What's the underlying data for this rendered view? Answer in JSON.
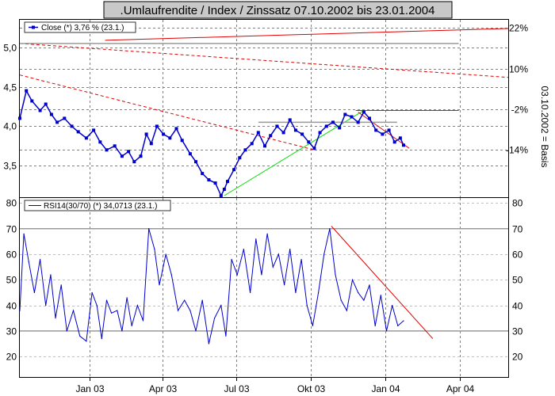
{
  "chart_data": [
    {
      "type": "line",
      "title": ".Umlaufrendite / Index / Zinssatz 07.10.2002 bis 23.01.2004",
      "legend": "Close (*) 3,76 % (23.1.)",
      "legend_placement": "top-left",
      "grid": true,
      "xticks": [
        "Jan 03",
        "Apr 03",
        "Jul 03",
        "Okt 03",
        "Jan 04",
        "Apr 04"
      ],
      "xlim": [
        "2002-10-07",
        "2004-05-31"
      ],
      "ylim": [
        3.1,
        5.35
      ],
      "yticks": [
        "3,5",
        "4,0",
        "4,5",
        "5,0"
      ],
      "y2ticks": [
        "22%",
        "10%",
        "-2%",
        "-14%"
      ],
      "y2label": "03.10.2002 = Basis",
      "series": [
        {
          "name": "Close",
          "x": [
            "2002-10-07",
            "2002-10-15",
            "2002-10-22",
            "2002-11-01",
            "2002-11-08",
            "2002-11-15",
            "2002-11-22",
            "2002-12-01",
            "2002-12-10",
            "2002-12-18",
            "2002-12-28",
            "2003-01-06",
            "2003-01-14",
            "2003-01-22",
            "2003-02-01",
            "2003-02-10",
            "2003-02-18",
            "2003-02-25",
            "2003-03-05",
            "2003-03-12",
            "2003-03-18",
            "2003-03-25",
            "2003-04-02",
            "2003-04-10",
            "2003-04-18",
            "2003-04-25",
            "2003-05-05",
            "2003-05-12",
            "2003-05-20",
            "2003-05-28",
            "2003-06-05",
            "2003-06-12",
            "2003-06-16",
            "2003-06-20",
            "2003-06-28",
            "2003-07-05",
            "2003-07-12",
            "2003-07-20",
            "2003-07-28",
            "2003-08-05",
            "2003-08-12",
            "2003-08-20",
            "2003-08-28",
            "2003-09-05",
            "2003-09-12",
            "2003-09-20",
            "2003-09-28",
            "2003-10-05",
            "2003-10-12",
            "2003-10-20",
            "2003-10-28",
            "2003-11-05",
            "2003-11-12",
            "2003-11-20",
            "2003-11-28",
            "2003-12-05",
            "2003-12-12",
            "2003-12-20",
            "2003-12-28",
            "2004-01-05",
            "2004-01-12",
            "2004-01-19",
            "2004-01-23"
          ],
          "values": [
            4.1,
            4.45,
            4.32,
            4.2,
            4.28,
            4.15,
            4.05,
            4.1,
            4.0,
            3.93,
            3.85,
            3.95,
            3.8,
            3.7,
            3.75,
            3.62,
            3.68,
            3.55,
            3.62,
            3.9,
            3.78,
            4.0,
            3.9,
            3.85,
            3.97,
            3.82,
            3.65,
            3.55,
            3.4,
            3.32,
            3.28,
            3.12,
            3.2,
            3.3,
            3.45,
            3.6,
            3.7,
            3.78,
            3.92,
            3.75,
            3.88,
            4.0,
            3.92,
            4.08,
            3.95,
            3.9,
            3.8,
            3.72,
            3.92,
            4.0,
            4.05,
            3.98,
            4.15,
            4.12,
            4.05,
            4.18,
            4.1,
            3.95,
            3.9,
            3.95,
            3.8,
            3.85,
            3.76
          ],
          "color": "#0000cc"
        }
      ],
      "annotations": [
        {
          "kind": "trend-solid",
          "color": "#e00000",
          "x": [
            "2003-01-20",
            "2004-05-31"
          ],
          "y": [
            5.09,
            5.24
          ]
        },
        {
          "kind": "trend-dashed",
          "color": "#e00000",
          "x": [
            "2002-10-07",
            "2004-05-31"
          ],
          "y": [
            5.05,
            4.62
          ]
        },
        {
          "kind": "trend-dashed",
          "color": "#e00000",
          "x": [
            "2002-10-07",
            "2003-10-05"
          ],
          "y": [
            4.65,
            3.7
          ]
        },
        {
          "kind": "trend-solid",
          "color": "#00dd00",
          "x": [
            "2003-06-16",
            "2003-12-05"
          ],
          "y": [
            3.12,
            4.2
          ]
        },
        {
          "kind": "trend-solid",
          "color": "#e00000",
          "x": [
            "2003-11-28",
            "2004-01-30"
          ],
          "y": [
            4.18,
            3.72
          ]
        },
        {
          "kind": "level",
          "color": "#999999",
          "x": [
            "2002-10-07",
            "2004-03-31"
          ],
          "y": [
            5.05,
            5.05
          ]
        },
        {
          "kind": "level",
          "color": "#999999",
          "x": [
            "2003-07-28",
            "2004-01-15"
          ],
          "y": [
            4.05,
            4.05
          ]
        },
        {
          "kind": "level",
          "color": "#cc00cc",
          "x": [
            "2003-11-25",
            "2004-03-31"
          ],
          "y": [
            4.2,
            4.2
          ]
        }
      ]
    },
    {
      "type": "line",
      "legend": "RSI14(30/70) (*) 34,0713 (23.1.)",
      "legend_placement": "top-left",
      "grid": true,
      "ylim": [
        12,
        82
      ],
      "yticks": [
        "20",
        "30",
        "40",
        "50",
        "60",
        "70",
        "80"
      ],
      "series": [
        {
          "name": "RSI14(30/70)",
          "x": [
            "2002-10-07",
            "2002-10-12",
            "2002-10-18",
            "2002-10-25",
            "2002-11-01",
            "2002-11-08",
            "2002-11-14",
            "2002-11-20",
            "2002-11-27",
            "2002-12-04",
            "2002-12-12",
            "2002-12-20",
            "2002-12-28",
            "2003-01-04",
            "2003-01-10",
            "2003-01-16",
            "2003-01-22",
            "2003-01-28",
            "2003-02-04",
            "2003-02-10",
            "2003-02-16",
            "2003-02-22",
            "2003-03-01",
            "2003-03-08",
            "2003-03-15",
            "2003-03-22",
            "2003-03-28",
            "2003-04-05",
            "2003-04-12",
            "2003-04-20",
            "2003-04-28",
            "2003-05-05",
            "2003-05-12",
            "2003-05-20",
            "2003-05-28",
            "2003-06-04",
            "2003-06-12",
            "2003-06-18",
            "2003-06-25",
            "2003-07-02",
            "2003-07-10",
            "2003-07-18",
            "2003-07-25",
            "2003-08-01",
            "2003-08-08",
            "2003-08-15",
            "2003-08-22",
            "2003-08-29",
            "2003-09-05",
            "2003-09-12",
            "2003-09-19",
            "2003-09-26",
            "2003-10-03",
            "2003-10-10",
            "2003-10-17",
            "2003-10-24",
            "2003-10-31",
            "2003-11-07",
            "2003-11-14",
            "2003-11-21",
            "2003-11-28",
            "2003-12-05",
            "2003-12-12",
            "2003-12-19",
            "2003-12-26",
            "2004-01-02",
            "2004-01-09",
            "2004-01-16",
            "2004-01-23"
          ],
          "values": [
            38,
            68,
            57,
            45,
            58,
            40,
            52,
            35,
            48,
            30,
            38,
            28,
            26,
            45,
            40,
            27,
            42,
            37,
            38,
            30,
            43,
            32,
            40,
            34,
            70,
            62,
            48,
            60,
            52,
            38,
            42,
            38,
            30,
            42,
            25,
            35,
            40,
            28,
            58,
            52,
            62,
            45,
            66,
            52,
            68,
            55,
            60,
            48,
            62,
            45,
            58,
            40,
            32,
            45,
            60,
            70,
            52,
            42,
            38,
            50,
            45,
            42,
            48,
            32,
            44,
            30,
            40,
            32,
            34
          ],
          "color": "#0000cc"
        }
      ],
      "annotations": [
        {
          "kind": "level",
          "color": "#999999",
          "x": [
            "2002-10-07",
            "2004-05-31"
          ],
          "y": [
            70,
            70
          ]
        },
        {
          "kind": "level",
          "color": "#999999",
          "x": [
            "2002-10-07",
            "2004-05-31"
          ],
          "y": [
            30,
            30
          ]
        },
        {
          "kind": "trend-solid",
          "color": "#e00000",
          "x": [
            "2003-10-26",
            "2004-02-28"
          ],
          "y": [
            71,
            27
          ]
        }
      ]
    }
  ]
}
